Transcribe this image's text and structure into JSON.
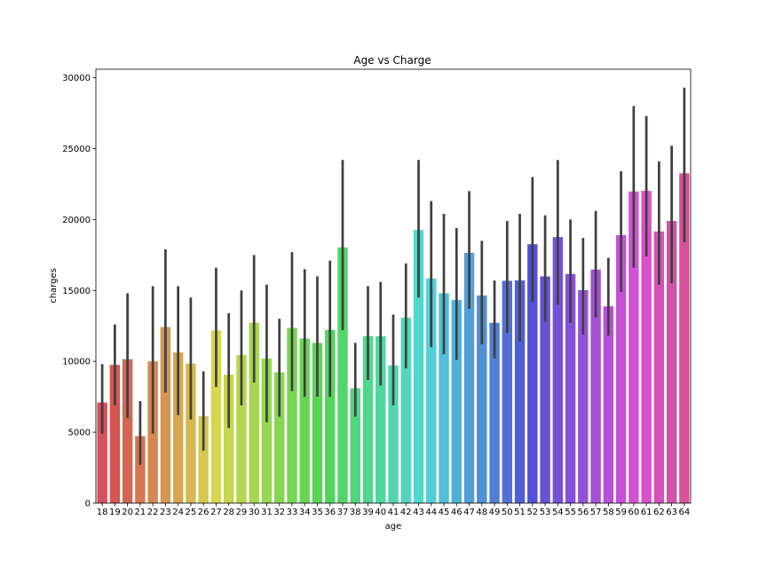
{
  "chart_data": {
    "type": "bar",
    "title": "Age vs Charge",
    "xlabel": "age",
    "ylabel": "charges",
    "ylim": [
      0,
      30600
    ],
    "yticks": [
      0,
      5000,
      10000,
      15000,
      20000,
      25000,
      30000
    ],
    "grid": false,
    "legend": "none",
    "palette": "husl",
    "error_bar_color": "#3f3f3f",
    "categories": [
      "18",
      "19",
      "20",
      "21",
      "22",
      "23",
      "24",
      "25",
      "26",
      "27",
      "28",
      "29",
      "30",
      "31",
      "32",
      "33",
      "34",
      "35",
      "36",
      "37",
      "38",
      "39",
      "40",
      "41",
      "42",
      "43",
      "44",
      "45",
      "46",
      "47",
      "48",
      "49",
      "50",
      "51",
      "52",
      "53",
      "54",
      "55",
      "56",
      "57",
      "58",
      "59",
      "60",
      "61",
      "62",
      "63",
      "64"
    ],
    "values": [
      7100,
      9750,
      10150,
      4730,
      10000,
      12420,
      10630,
      9840,
      6130,
      12180,
      9060,
      10440,
      12720,
      10200,
      9230,
      12360,
      11610,
      11300,
      12210,
      18030,
      8100,
      11780,
      11770,
      9710,
      13080,
      19260,
      15850,
      14800,
      14320,
      17650,
      14640,
      12720,
      15680,
      15710,
      18260,
      15990,
      18760,
      16160,
      15020,
      16470,
      13880,
      18900,
      21980,
      22020,
      19160,
      19900,
      23260
    ],
    "ci_low": [
      4900,
      6900,
      6000,
      2700,
      4900,
      7800,
      6200,
      5900,
      3700,
      8200,
      5300,
      6900,
      8500,
      5700,
      6100,
      7900,
      7500,
      7500,
      7500,
      12200,
      6100,
      8700,
      8300,
      6900,
      9500,
      14500,
      11000,
      10500,
      10100,
      13700,
      11200,
      10200,
      12000,
      11400,
      14200,
      12800,
      14000,
      12700,
      11900,
      13100,
      11800,
      14900,
      16600,
      17400,
      15400,
      15500,
      18400
    ],
    "ci_high": [
      9800,
      12600,
      14800,
      7200,
      15300,
      17900,
      15300,
      14500,
      9300,
      16600,
      13400,
      15000,
      17500,
      15400,
      13000,
      17700,
      16500,
      16000,
      17100,
      24200,
      11300,
      15300,
      15600,
      13300,
      16900,
      24200,
      21300,
      20400,
      19400,
      22000,
      18500,
      15700,
      19900,
      20400,
      23000,
      20300,
      24200,
      20000,
      18700,
      20600,
      17300,
      23400,
      28000,
      27300,
      24100,
      25200,
      29300
    ]
  }
}
